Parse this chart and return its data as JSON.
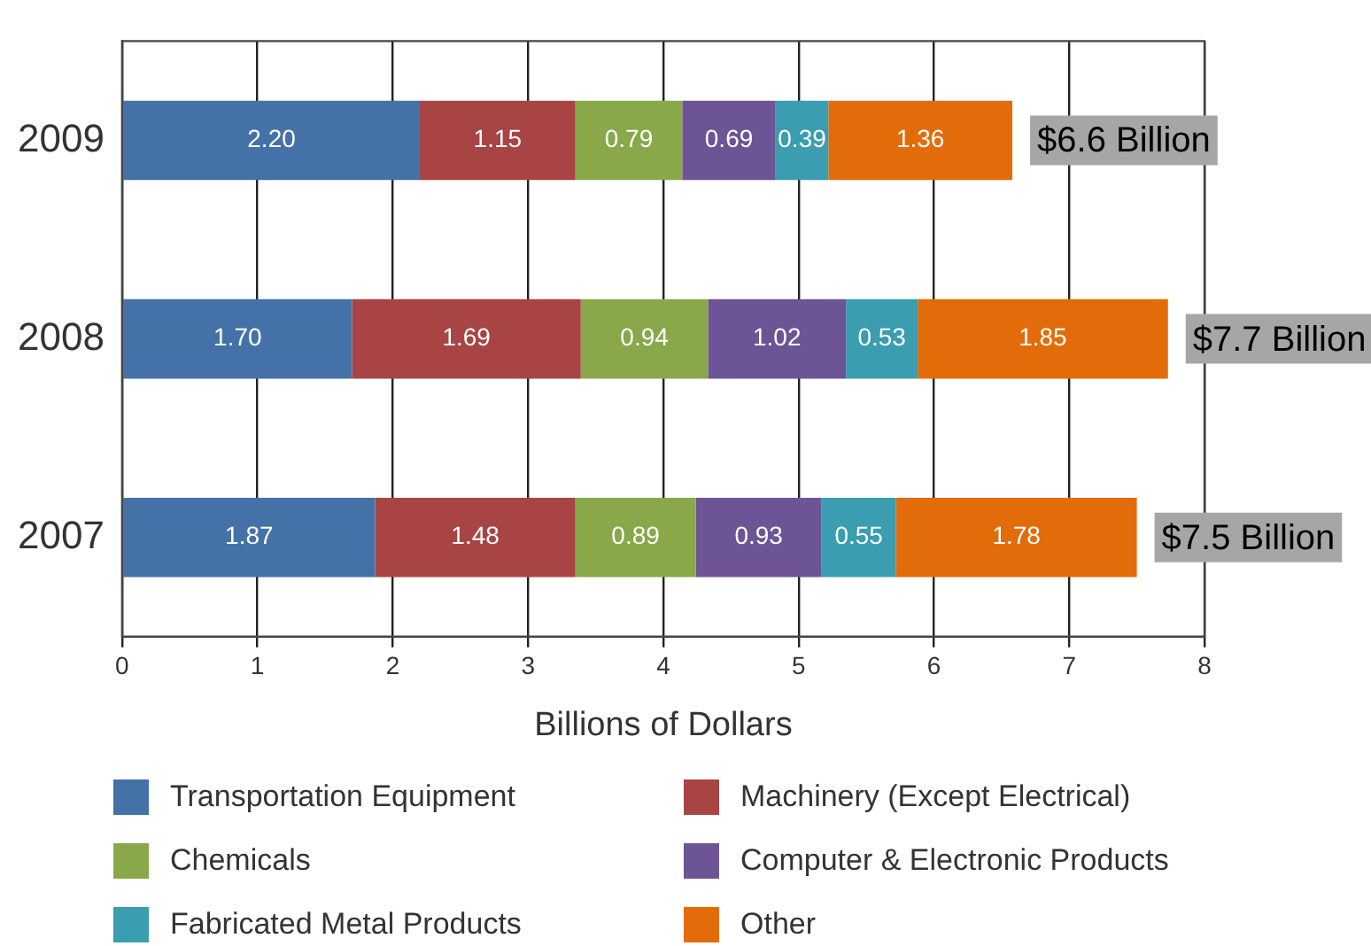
{
  "chart_data": {
    "type": "bar",
    "orientation": "horizontal",
    "stacked": true,
    "xlabel": "Billions of Dollars",
    "categories": [
      "2009",
      "2008",
      "2007"
    ],
    "series": [
      {
        "name": "Transportation Equipment",
        "color": "#4472a8",
        "values": [
          2.2,
          1.7,
          1.87
        ],
        "value_labels": [
          "2.20",
          "1.70",
          "1.87"
        ]
      },
      {
        "name": "Machinery (Except Electrical)",
        "color": "#a84444",
        "values": [
          1.15,
          1.69,
          1.48
        ],
        "value_labels": [
          "1.15",
          "1.69",
          "1.48"
        ]
      },
      {
        "name": "Chemicals",
        "color": "#88a84a",
        "values": [
          0.79,
          0.94,
          0.89
        ],
        "value_labels": [
          "0.79",
          "0.94",
          "0.89"
        ]
      },
      {
        "name": "Computer & Electronic Products",
        "color": "#6d5494",
        "values": [
          0.69,
          1.02,
          0.93
        ],
        "value_labels": [
          "0.69",
          "1.02",
          "0.93"
        ]
      },
      {
        "name": "Fabricated Metal Products",
        "color": "#3a9db0",
        "values": [
          0.39,
          0.53,
          0.55
        ],
        "value_labels": [
          "0.39",
          "0.53",
          "0.55"
        ]
      },
      {
        "name": "Other",
        "color": "#e36c0a",
        "values": [
          1.36,
          1.85,
          1.78
        ],
        "value_labels": [
          "1.36",
          "1.85",
          "1.78"
        ]
      }
    ],
    "xlim": [
      0,
      8
    ],
    "xticks": [
      0,
      1,
      2,
      3,
      4,
      5,
      6,
      7,
      8
    ],
    "grid": "x",
    "legend": "bottom",
    "totals": [
      "$6.6 Billion",
      "$7.7 Billion",
      "$7.5 Billion"
    ]
  }
}
